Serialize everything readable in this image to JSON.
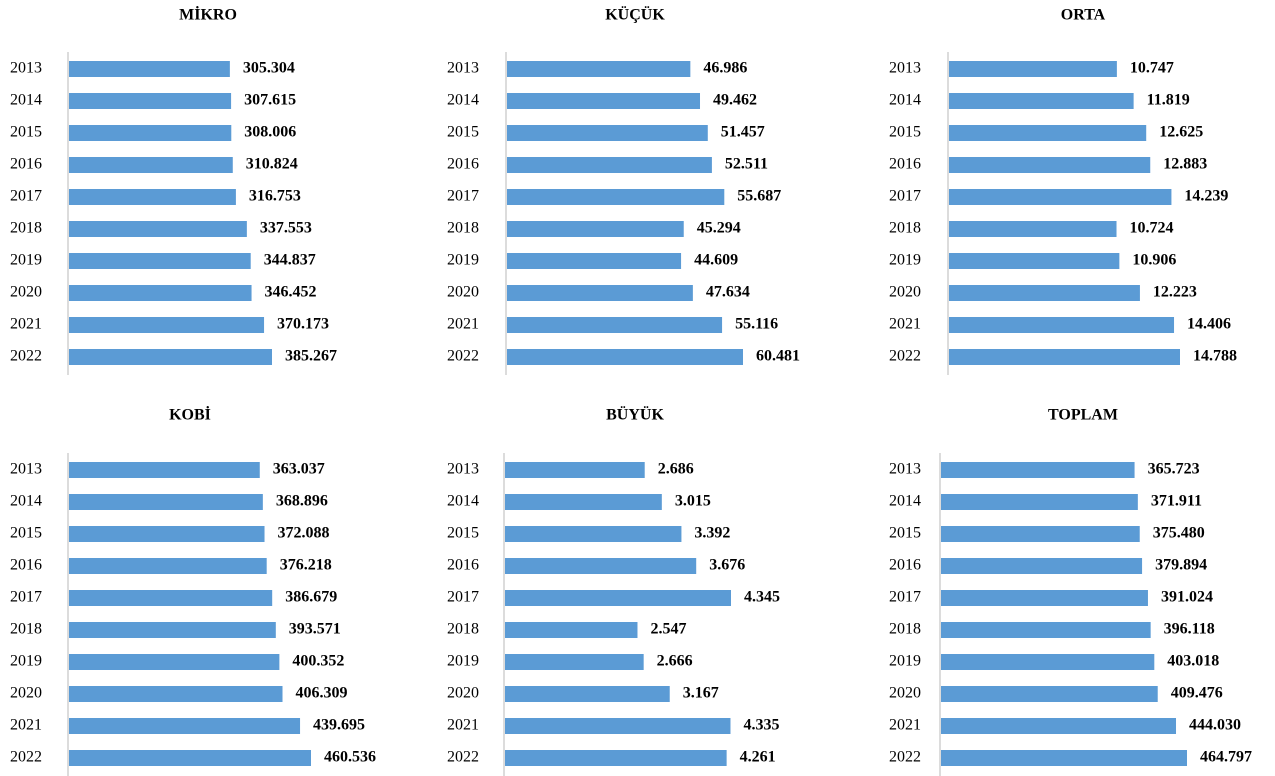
{
  "chart_data": [
    {
      "type": "bar",
      "orientation": "horizontal",
      "title": "MİKRO",
      "color": "#5b9bd5",
      "categories": [
        "2013",
        "2014",
        "2015",
        "2016",
        "2017",
        "2018",
        "2019",
        "2020",
        "2021",
        "2022"
      ],
      "values": [
        305304,
        307615,
        308006,
        310824,
        316753,
        337553,
        344837,
        346452,
        370173,
        385267
      ],
      "value_labels": [
        "305.304",
        "307.615",
        "308.006",
        "310.824",
        "316.753",
        "337.553",
        "344.837",
        "346.452",
        "370.173",
        "385.267"
      ]
    },
    {
      "type": "bar",
      "orientation": "horizontal",
      "title": "KÜÇÜK",
      "color": "#5b9bd5",
      "categories": [
        "2013",
        "2014",
        "2015",
        "2016",
        "2017",
        "2018",
        "2019",
        "2020",
        "2021",
        "2022"
      ],
      "values": [
        46986,
        49462,
        51457,
        52511,
        55687,
        45294,
        44609,
        47634,
        55116,
        60481
      ],
      "value_labels": [
        "46.986",
        "49.462",
        "51.457",
        "52.511",
        "55.687",
        "45.294",
        "44.609",
        "47.634",
        "55.116",
        "60.481"
      ]
    },
    {
      "type": "bar",
      "orientation": "horizontal",
      "title": "ORTA",
      "color": "#5b9bd5",
      "categories": [
        "2013",
        "2014",
        "2015",
        "2016",
        "2017",
        "2018",
        "2019",
        "2020",
        "2021",
        "2022"
      ],
      "values": [
        10747,
        11819,
        12625,
        12883,
        14239,
        10724,
        10906,
        12223,
        14406,
        14788
      ],
      "value_labels": [
        "10.747",
        "11.819",
        "12.625",
        "12.883",
        "14.239",
        "10.724",
        "10.906",
        "12.223",
        "14.406",
        "14.788"
      ]
    },
    {
      "type": "bar",
      "orientation": "horizontal",
      "title": "KOBİ",
      "color": "#5b9bd5",
      "categories": [
        "2013",
        "2014",
        "2015",
        "2016",
        "2017",
        "2018",
        "2019",
        "2020",
        "2021",
        "2022"
      ],
      "values": [
        363037,
        368896,
        372088,
        376218,
        386679,
        393571,
        400352,
        406309,
        439695,
        460536
      ],
      "value_labels": [
        "363.037",
        "368.896",
        "372.088",
        "376.218",
        "386.679",
        "393.571",
        "400.352",
        "406.309",
        "439.695",
        "460.536"
      ]
    },
    {
      "type": "bar",
      "orientation": "horizontal",
      "title": "BÜYÜK",
      "color": "#5b9bd5",
      "categories": [
        "2013",
        "2014",
        "2015",
        "2016",
        "2017",
        "2018",
        "2019",
        "2020",
        "2021",
        "2022"
      ],
      "values": [
        2686,
        3015,
        3392,
        3676,
        4345,
        2547,
        2666,
        3167,
        4335,
        4261
      ],
      "value_labels": [
        "2.686",
        "3.015",
        "3.392",
        "3.676",
        "4.345",
        "2.547",
        "2.666",
        "3.167",
        "4.335",
        "4.261"
      ]
    },
    {
      "type": "bar",
      "orientation": "horizontal",
      "title": "TOPLAM",
      "color": "#5b9bd5",
      "categories": [
        "2013",
        "2014",
        "2015",
        "2016",
        "2017",
        "2018",
        "2019",
        "2020",
        "2021",
        "2022"
      ],
      "values": [
        365723,
        371911,
        375480,
        379894,
        391024,
        396118,
        403018,
        409476,
        444030,
        464797
      ],
      "value_labels": [
        "365.723",
        "371.911",
        "375.480",
        "379.894",
        "391.024",
        "396.118",
        "403.018",
        "409.476",
        "444.030",
        "464.797"
      ]
    }
  ]
}
